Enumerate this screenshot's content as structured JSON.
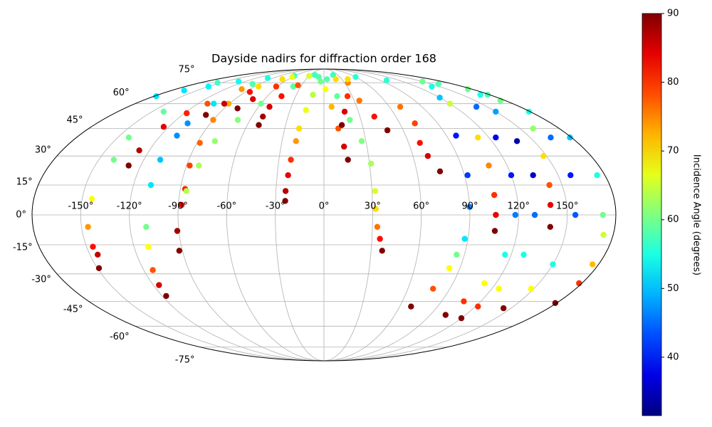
{
  "chart_data": {
    "type": "scatter",
    "projection": "mollweide",
    "colormap": "jet",
    "title": "Dayside nadirs for diffraction order 168",
    "colorbar_label": "Incidence Angle (degrees)",
    "clim": [
      31.5,
      90
    ],
    "cticks": [
      40,
      50,
      60,
      70,
      80,
      90
    ],
    "xlim": [
      -180,
      180
    ],
    "ylim": [
      -90,
      90
    ],
    "grid": true,
    "xticks": [
      {
        "value": -150,
        "label": "-150°"
      },
      {
        "value": -120,
        "label": "-120°"
      },
      {
        "value": -90,
        "label": "-90°"
      },
      {
        "value": -60,
        "label": "-60°"
      },
      {
        "value": -30,
        "label": "-30°"
      },
      {
        "value": 0,
        "label": "0°"
      },
      {
        "value": 30,
        "label": "30°"
      },
      {
        "value": 60,
        "label": "60°"
      },
      {
        "value": 90,
        "label": "90°"
      },
      {
        "value": 120,
        "label": "120°"
      },
      {
        "value": 150,
        "label": "150°"
      }
    ],
    "yticks": [
      {
        "value": -75,
        "label": "-75°"
      },
      {
        "value": -60,
        "label": "-60°"
      },
      {
        "value": -45,
        "label": "-45°"
      },
      {
        "value": -30,
        "label": "-30°"
      },
      {
        "value": -15,
        "label": "-15°"
      },
      {
        "value": 0,
        "label": "0°"
      },
      {
        "value": 15,
        "label": "15°"
      },
      {
        "value": 30,
        "label": "30°"
      },
      {
        "value": 45,
        "label": "45°"
      },
      {
        "value": 60,
        "label": "60°"
      },
      {
        "value": 75,
        "label": "75°"
      }
    ],
    "series": [
      {
        "x": [
          -178,
          -165,
          -150,
          -130,
          -100,
          -60,
          -20,
          20,
          60,
          100,
          140,
          170
        ],
        "y": [
          65,
          69,
          72,
          76,
          79,
          81,
          82,
          82,
          80,
          77,
          72,
          66
        ],
        "c": [
          52,
          52,
          53,
          54,
          55,
          56,
          57,
          57,
          56,
          56,
          55,
          55
        ]
      },
      {
        "x": [
          -155,
          -140,
          -142,
          -140,
          -144,
          -146,
          -146,
          -145,
          -149
        ],
        "y": [
          75,
          55,
          40,
          28,
          8,
          -6,
          -16,
          -20,
          -27
        ],
        "c": [
          57,
          59,
          60,
          60,
          68,
          74,
          82,
          86,
          90
        ]
      },
      {
        "x": [
          -128,
          -127,
          -124,
          -118,
          -111,
          -100,
          -70,
          -30
        ],
        "y": [
          25,
          33,
          46,
          54,
          60,
          70,
          78,
          81
        ],
        "c": [
          90,
          87,
          84,
          81,
          78,
          74,
          70,
          66
        ]
      },
      {
        "x": [
          -100,
          -105,
          -108,
          -108,
          -109,
          -109,
          -110,
          -111,
          -114,
          -116,
          -117
        ],
        "y": [
          74,
          60,
          48,
          41,
          28,
          15,
          -6,
          -16,
          -28,
          -36,
          -42
        ],
        "c": [
          58,
          52,
          47,
          47,
          50,
          52,
          60,
          68,
          78,
          85,
          90
        ]
      },
      {
        "x": [
          -92,
          -91,
          -88,
          -87,
          -88,
          -88,
          -90,
          -91,
          -85,
          -60
        ],
        "y": [
          -18,
          -8,
          5,
          13,
          25,
          37,
          50,
          60,
          72,
          80
        ],
        "c": [
          90,
          88,
          84,
          81,
          79,
          77,
          75,
          73,
          70,
          67
        ]
      },
      {
        "x": [
          -86,
          -82,
          -78,
          -70,
          -60,
          -40,
          -10
        ],
        "y": [
          12,
          25,
          38,
          50,
          60,
          72,
          80
        ],
        "c": [
          64,
          63,
          62,
          61,
          60,
          59,
          58
        ]
      },
      {
        "x": [
          -100,
          -95,
          -85
        ],
        "y": [
          53,
          60,
          68
        ],
        "c": [
          90,
          86,
          82
        ]
      },
      {
        "x": [
          -78,
          -72,
          -62
        ],
        "y": [
          57,
          63,
          72
        ],
        "c": [
          90,
          85,
          80
        ]
      },
      {
        "x": [
          -51,
          -51,
          -50,
          -45,
          -35
        ],
        "y": [
          47,
          52,
          58,
          65,
          73
        ],
        "c": [
          90,
          88,
          85,
          82,
          78
        ]
      },
      {
        "x": [
          -24,
          -24,
          -23,
          -22,
          -20,
          -19,
          -16,
          -12,
          -5
        ],
        "y": [
          7,
          12,
          20,
          28,
          38,
          45,
          56,
          66,
          76
        ],
        "c": [
          90,
          87,
          84,
          80,
          74,
          70,
          67,
          64,
          60
        ]
      },
      {
        "x": [
          5,
          14,
          21,
          27,
          31,
          32,
          32,
          33,
          35,
          37
        ],
        "y": [
          78,
          65,
          50,
          38,
          26,
          12,
          3,
          -6,
          -12,
          -18
        ],
        "c": [
          58,
          59,
          60,
          61,
          63,
          66,
          70,
          76,
          82,
          90
        ]
      },
      {
        "x": [
          16,
          14,
          11,
          7,
          2
        ],
        "y": [
          28,
          35,
          45,
          58,
          70
        ],
        "c": [
          90,
          85,
          78,
          72,
          68
        ]
      },
      {
        "x": [
          14,
          18,
          25,
          35
        ],
        "y": [
          47,
          55,
          65,
          75
        ],
        "c": [
          90,
          85,
          80,
          75
        ]
      },
      {
        "x": [
          20,
          35,
          42,
          48
        ],
        "y": [
          78,
          62,
          52,
          44
        ],
        "c": [
          70,
          76,
          82,
          90
        ]
      },
      {
        "x": [
          40,
          70,
          72,
          68,
          70,
          75
        ],
        "y": [
          78,
          58,
          48,
          37,
          30,
          22
        ],
        "c": [
          70,
          76,
          79,
          82,
          85,
          90
        ]
      },
      {
        "x": [
          160,
          120,
          97,
          92,
          90,
          88,
          85,
          83,
          78,
          69
        ],
        "y": [
          74,
          64,
          41,
          20,
          4,
          -12,
          -20,
          -27,
          -38,
          -48
        ],
        "c": [
          58,
          50,
          40,
          42,
          46,
          52,
          60,
          68,
          78,
          90
        ]
      },
      {
        "x": [
          150,
          120,
          112,
          108,
          106,
          106,
          106
        ],
        "y": [
          76,
          60,
          40,
          25,
          10,
          0,
          -8
        ],
        "c": [
          60,
          65,
          70,
          75,
          80,
          84,
          90
        ]
      },
      {
        "x": [
          175,
          140,
          125,
          120,
          118,
          116,
          112,
          107,
          103
        ],
        "y": [
          70,
          58,
          40,
          20,
          0,
          -20,
          -35,
          -45,
          -53
        ],
        "c": [
          60,
          45,
          38,
          40,
          46,
          55,
          68,
          80,
          90
        ]
      },
      {
        "x": [
          178,
          150,
          138,
          134,
          130,
          128,
          125,
          122,
          120
        ],
        "y": [
          66,
          55,
          38,
          20,
          0,
          -20,
          -38,
          -48,
          -55
        ],
        "c": [
          58,
          48,
          34,
          36,
          45,
          55,
          68,
          80,
          90
        ]
      },
      {
        "x": [
          175,
          160,
          148,
          142,
          140,
          140
        ],
        "y": [
          62,
          45,
          30,
          15,
          5,
          -6
        ],
        "c": [
          60,
          62,
          70,
          78,
          84,
          90
        ]
      },
      {
        "x": [
          179,
          165,
          158,
          155,
          150,
          148,
          144
        ],
        "y": [
          55,
          40,
          20,
          0,
          -25,
          -38,
          -49
        ],
        "c": [
          55,
          45,
          40,
          44,
          55,
          68,
          90
        ]
      },
      {
        "x": [
          179,
          175,
          172,
          174,
          176,
          178,
          179
        ],
        "y": [
          40,
          20,
          0,
          -10,
          -25,
          -35,
          -46
        ],
        "c": [
          50,
          55,
          60,
          65,
          72,
          80,
          90
        ]
      }
    ]
  }
}
